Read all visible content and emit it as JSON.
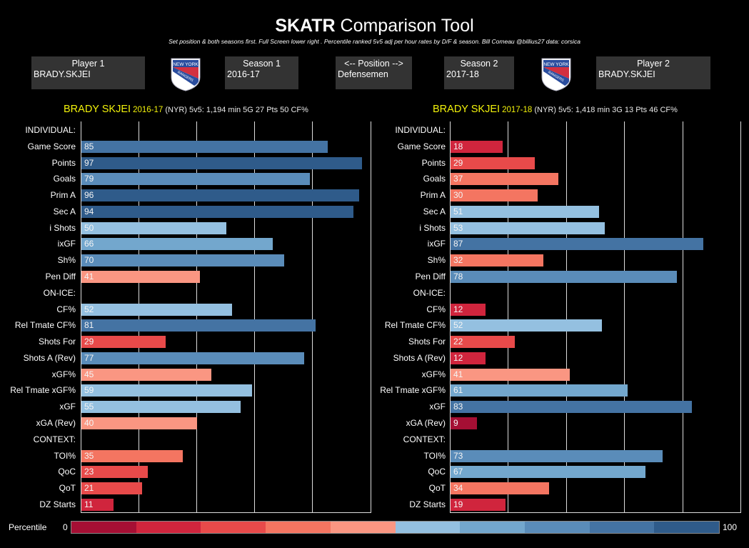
{
  "header": {
    "title_bold": "SKATR",
    "title_rest": " Comparison Tool",
    "subtitle": "Set position & both seasons first. Full Screen lower right      . Percentile ranked 5v5 adj per hour rates by D/F & season. Bill Comeau @billius27 data: corsica"
  },
  "controls": {
    "player1": {
      "caption": "Player 1",
      "value": "BRADY.SKJEI"
    },
    "season1": {
      "caption": "Season 1",
      "value": "2016-17"
    },
    "position": {
      "caption": "<-- Position -->",
      "value": "Defensemen"
    },
    "season2": {
      "caption": "Season 2",
      "value": "2017-18"
    },
    "player2": {
      "caption": "Player 2",
      "value": "BRADY.SKJEI"
    }
  },
  "logos": {
    "team": "New York Rangers",
    "text_top": "NEW YORK",
    "text_band": "RANGERS"
  },
  "legend": {
    "title": "Percentile",
    "min": "0",
    "max": "100",
    "colors": [
      "#a50f34",
      "#d0253d",
      "#e84a4a",
      "#f47561",
      "#fa9682",
      "#94c0e0",
      "#73a7cd",
      "#5a8cb9",
      "#4473a3",
      "#2f5b8a"
    ]
  },
  "chart_data": [
    {
      "type": "bar",
      "orientation": "horizontal",
      "title": "BRADY SKJEI 2016-17 (NYR) 5v5: 1,194 min  5G  27 Pts  50 CF%",
      "header": {
        "name": "BRADY SKJEI",
        "season": "2016-17",
        "details": " (NYR) 5v5: 1,194 min  5G  27 Pts  50 CF%"
      },
      "xlim": [
        0,
        100
      ],
      "grid": true,
      "categories": [
        "INDIVIDUAL:",
        "Game Score",
        "Points",
        "Goals",
        "Prim A",
        "Sec A",
        "i Shots",
        "ixGF",
        "Sh%",
        "Pen Diff",
        "ON-ICE:",
        "CF%",
        "Rel Tmate CF%",
        "Shots For",
        "Shots A (Rev)",
        "xGF%",
        "Rel Tmate xGF%",
        "xGF",
        "xGA (Rev)",
        "CONTEXT:",
        "TOI%",
        "QoC",
        "QoT",
        "DZ Starts"
      ],
      "values": [
        null,
        85,
        97,
        79,
        96,
        94,
        50,
        66,
        70,
        41,
        null,
        52,
        81,
        29,
        77,
        45,
        59,
        55,
        40,
        null,
        35,
        23,
        21,
        11
      ]
    },
    {
      "type": "bar",
      "orientation": "horizontal",
      "title": "BRADY SKJEI 2017-18 (NYR) 5v5: 1,418 min  3G  13 Pts  46 CF%",
      "header": {
        "name": "BRADY SKJEI",
        "season": "2017-18",
        "details": " (NYR) 5v5: 1,418 min  3G  13 Pts  46 CF%"
      },
      "xlim": [
        0,
        100
      ],
      "grid": true,
      "categories": [
        "INDIVIDUAL:",
        "Game Score",
        "Points",
        "Goals",
        "Prim A",
        "Sec A",
        "i Shots",
        "ixGF",
        "Sh%",
        "Pen Diff",
        "ON-ICE:",
        "CF%",
        "Rel Tmate CF%",
        "Shots For",
        "Shots A (Rev)",
        "xGF%",
        "Rel Tmate xGF%",
        "xGF",
        "xGA (Rev)",
        "CONTEXT:",
        "TOI%",
        "QoC",
        "QoT",
        "DZ Starts"
      ],
      "values": [
        null,
        18,
        29,
        37,
        30,
        51,
        53,
        87,
        32,
        78,
        null,
        12,
        52,
        22,
        12,
        41,
        61,
        83,
        9,
        null,
        73,
        67,
        34,
        19
      ]
    }
  ]
}
